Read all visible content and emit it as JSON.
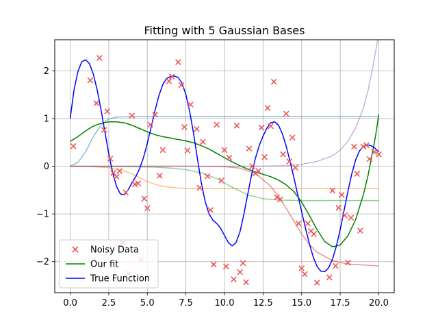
{
  "chart_data": {
    "type": "line",
    "title": "Fitting with 5 Gaussian Bases",
    "xlabel": "",
    "ylabel": "",
    "xlim": [
      -1.0,
      21.0
    ],
    "ylim": [
      -2.65,
      2.65
    ],
    "x_ticks": [
      0,
      2.5,
      5,
      7.5,
      10,
      12.5,
      15,
      17.5,
      20
    ],
    "x_tick_labels": [
      "0.0",
      "2.5",
      "5.0",
      "7.5",
      "10.0",
      "12.5",
      "15.0",
      "17.5",
      "20.0"
    ],
    "y_ticks": [
      -2,
      -1,
      0,
      1,
      2
    ],
    "y_tick_labels": [
      "−2",
      "−1",
      "0",
      "1",
      "2"
    ],
    "grid": true,
    "legend_position": "lower-left",
    "legend": [
      {
        "label": "Noisy Data",
        "marker": "x",
        "color": "#ee5555"
      },
      {
        "label": "Our fit",
        "marker": "line",
        "color": "#008000"
      },
      {
        "label": "True Function",
        "marker": "line",
        "color": "#0000ff"
      }
    ],
    "series": [
      {
        "name": "Noisy Data",
        "kind": "scatter",
        "color": "#ee5555",
        "points": [
          [
            0.2,
            0.42
          ],
          [
            1.3,
            1.8
          ],
          [
            1.7,
            1.32
          ],
          [
            1.9,
            2.27
          ],
          [
            2.2,
            0.76
          ],
          [
            2.4,
            1.15
          ],
          [
            2.6,
            0.16
          ],
          [
            2.8,
            -0.14
          ],
          [
            3.0,
            -0.22
          ],
          [
            3.2,
            -0.1
          ],
          [
            3.4,
            -1.6
          ],
          [
            3.6,
            -0.55
          ],
          [
            3.8,
            -2.25
          ],
          [
            4.0,
            1.06
          ],
          [
            4.2,
            -0.38
          ],
          [
            4.4,
            -0.36
          ],
          [
            4.6,
            -1.96
          ],
          [
            4.8,
            -0.68
          ],
          [
            5.0,
            -0.88
          ],
          [
            5.2,
            0.87
          ],
          [
            5.5,
            1.08
          ],
          [
            5.8,
            -0.2
          ],
          [
            6.0,
            0.34
          ],
          [
            6.4,
            1.78
          ],
          [
            6.6,
            1.88
          ],
          [
            7.0,
            2.18
          ],
          [
            7.2,
            1.7
          ],
          [
            7.4,
            0.82
          ],
          [
            7.6,
            0.33
          ],
          [
            7.8,
            1.29
          ],
          [
            8.2,
            0.78
          ],
          [
            8.4,
            -0.45
          ],
          [
            8.6,
            0.51
          ],
          [
            8.9,
            -0.21
          ],
          [
            9.1,
            -0.92
          ],
          [
            9.3,
            -2.06
          ],
          [
            9.5,
            0.87
          ],
          [
            9.8,
            -0.3
          ],
          [
            10.0,
            0.34
          ],
          [
            10.1,
            -2.1
          ],
          [
            10.3,
            0.18
          ],
          [
            10.6,
            -2.37
          ],
          [
            10.8,
            0.85
          ],
          [
            11.0,
            -2.22
          ],
          [
            11.2,
            -2.03
          ],
          [
            11.4,
            -2.43
          ],
          [
            11.6,
            0.37
          ],
          [
            11.8,
            0.0
          ],
          [
            12.0,
            -0.15
          ],
          [
            12.2,
            -0.1
          ],
          [
            12.4,
            0.81
          ],
          [
            12.6,
            0.19
          ],
          [
            12.8,
            1.22
          ],
          [
            13.0,
            0.84
          ],
          [
            13.2,
            1.77
          ],
          [
            13.4,
            -0.65
          ],
          [
            13.6,
            -0.7
          ],
          [
            13.8,
            0.25
          ],
          [
            14.0,
            1.1
          ],
          [
            14.2,
            0.1
          ],
          [
            14.4,
            0.6
          ],
          [
            14.6,
            -0.03
          ],
          [
            14.8,
            -1.2
          ],
          [
            15.0,
            -2.14
          ],
          [
            15.2,
            -2.26
          ],
          [
            15.4,
            -1.2
          ],
          [
            15.6,
            -1.36
          ],
          [
            15.8,
            -1.42
          ],
          [
            16.0,
            -2.44
          ],
          [
            16.8,
            -2.33
          ],
          [
            17.0,
            -0.51
          ],
          [
            17.2,
            -2.09
          ],
          [
            17.4,
            -0.87
          ],
          [
            17.6,
            -0.6
          ],
          [
            17.8,
            -1.03
          ],
          [
            18.0,
            -2.02
          ],
          [
            18.2,
            -1.08
          ],
          [
            18.4,
            0.41
          ],
          [
            18.6,
            -0.16
          ],
          [
            18.8,
            -1.35
          ],
          [
            19.0,
            0.41
          ],
          [
            19.2,
            0.44
          ],
          [
            19.4,
            0.15
          ],
          [
            19.7,
            0.3
          ],
          [
            20.0,
            0.25
          ]
        ]
      },
      {
        "name": "Our fit",
        "kind": "line",
        "color": "#008000",
        "points": [
          [
            0.0,
            0.52
          ],
          [
            0.5,
            0.62
          ],
          [
            1.0,
            0.74
          ],
          [
            1.5,
            0.84
          ],
          [
            2.0,
            0.9
          ],
          [
            2.5,
            0.93
          ],
          [
            3.0,
            0.93
          ],
          [
            3.5,
            0.91
          ],
          [
            4.0,
            0.86
          ],
          [
            4.5,
            0.79
          ],
          [
            5.0,
            0.72
          ],
          [
            5.5,
            0.66
          ],
          [
            6.0,
            0.62
          ],
          [
            6.5,
            0.59
          ],
          [
            7.0,
            0.56
          ],
          [
            7.5,
            0.53
          ],
          [
            8.0,
            0.49
          ],
          [
            8.5,
            0.43
          ],
          [
            9.0,
            0.36
          ],
          [
            9.5,
            0.27
          ],
          [
            10.0,
            0.18
          ],
          [
            10.5,
            0.09
          ],
          [
            11.0,
            0.01
          ],
          [
            11.5,
            -0.06
          ],
          [
            12.0,
            -0.12
          ],
          [
            12.5,
            -0.17
          ],
          [
            13.0,
            -0.22
          ],
          [
            13.5,
            -0.29
          ],
          [
            14.0,
            -0.39
          ],
          [
            14.5,
            -0.53
          ],
          [
            15.0,
            -0.75
          ],
          [
            15.5,
            -1.03
          ],
          [
            16.0,
            -1.33
          ],
          [
            16.5,
            -1.58
          ],
          [
            17.0,
            -1.69
          ],
          [
            17.5,
            -1.65
          ],
          [
            18.0,
            -1.46
          ],
          [
            18.5,
            -1.12
          ],
          [
            19.0,
            -0.6
          ],
          [
            19.3,
            -0.2
          ],
          [
            19.6,
            0.3
          ],
          [
            19.8,
            0.65
          ],
          [
            20.0,
            1.09
          ]
        ]
      },
      {
        "name": "True Function",
        "kind": "line",
        "color": "#0000ff",
        "points": [
          [
            0.0,
            1.0
          ],
          [
            0.25,
            1.6
          ],
          [
            0.5,
            1.98
          ],
          [
            0.75,
            2.19
          ],
          [
            1.0,
            2.23
          ],
          [
            1.25,
            2.15
          ],
          [
            1.5,
            1.93
          ],
          [
            1.75,
            1.6
          ],
          [
            2.0,
            1.18
          ],
          [
            2.25,
            0.72
          ],
          [
            2.5,
            0.26
          ],
          [
            2.75,
            -0.13
          ],
          [
            3.0,
            -0.42
          ],
          [
            3.25,
            -0.58
          ],
          [
            3.5,
            -0.6
          ],
          [
            3.75,
            -0.5
          ],
          [
            4.0,
            -0.35
          ],
          [
            4.25,
            -0.22
          ],
          [
            4.5,
            -0.05
          ],
          [
            4.75,
            0.18
          ],
          [
            5.0,
            0.48
          ],
          [
            5.25,
            0.82
          ],
          [
            5.5,
            1.17
          ],
          [
            5.75,
            1.48
          ],
          [
            6.0,
            1.71
          ],
          [
            6.25,
            1.84
          ],
          [
            6.5,
            1.88
          ],
          [
            6.75,
            1.89
          ],
          [
            7.0,
            1.86
          ],
          [
            7.25,
            1.74
          ],
          [
            7.5,
            1.5
          ],
          [
            7.75,
            1.14
          ],
          [
            8.0,
            0.68
          ],
          [
            8.25,
            0.15
          ],
          [
            8.5,
            -0.35
          ],
          [
            8.75,
            -0.74
          ],
          [
            9.0,
            -1.0
          ],
          [
            9.25,
            -1.13
          ],
          [
            9.5,
            -1.2
          ],
          [
            9.75,
            -1.3
          ],
          [
            10.0,
            -1.45
          ],
          [
            10.25,
            -1.6
          ],
          [
            10.5,
            -1.67
          ],
          [
            10.75,
            -1.6
          ],
          [
            11.0,
            -1.38
          ],
          [
            11.25,
            -1.02
          ],
          [
            11.5,
            -0.6
          ],
          [
            11.75,
            -0.19
          ],
          [
            12.0,
            0.16
          ],
          [
            12.25,
            0.43
          ],
          [
            12.5,
            0.63
          ],
          [
            12.75,
            0.8
          ],
          [
            13.0,
            0.91
          ],
          [
            13.25,
            0.93
          ],
          [
            13.5,
            0.86
          ],
          [
            13.75,
            0.68
          ],
          [
            14.0,
            0.42
          ],
          [
            14.25,
            0.1
          ],
          [
            14.5,
            -0.24
          ],
          [
            14.75,
            -0.6
          ],
          [
            15.0,
            -0.95
          ],
          [
            15.25,
            -1.3
          ],
          [
            15.5,
            -1.62
          ],
          [
            15.75,
            -1.9
          ],
          [
            16.0,
            -2.1
          ],
          [
            16.25,
            -2.2
          ],
          [
            16.5,
            -2.21
          ],
          [
            16.75,
            -2.13
          ],
          [
            17.0,
            -1.95
          ],
          [
            17.25,
            -1.68
          ],
          [
            17.5,
            -1.33
          ],
          [
            17.75,
            -0.93
          ],
          [
            18.0,
            -0.53
          ],
          [
            18.25,
            -0.16
          ],
          [
            18.5,
            0.13
          ],
          [
            18.75,
            0.32
          ],
          [
            19.0,
            0.42
          ],
          [
            19.25,
            0.45
          ],
          [
            19.5,
            0.43
          ],
          [
            19.75,
            0.38
          ],
          [
            20.0,
            0.3
          ]
        ]
      },
      {
        "name": "",
        "kind": "line",
        "color": "#1f77b4",
        "opacity": 0.5,
        "points": [
          [
            0.0,
            0.0
          ],
          [
            0.5,
            0.08
          ],
          [
            1.0,
            0.3
          ],
          [
            1.5,
            0.62
          ],
          [
            2.0,
            0.87
          ],
          [
            2.5,
            0.99
          ],
          [
            3.0,
            1.03
          ],
          [
            4.0,
            1.04
          ],
          [
            6.0,
            1.04
          ],
          [
            10.0,
            1.04
          ],
          [
            14.0,
            1.04
          ],
          [
            18.0,
            1.04
          ],
          [
            20.0,
            1.04
          ]
        ]
      },
      {
        "name": "",
        "kind": "line",
        "color": "#ff7f0e",
        "opacity": 0.5,
        "points": [
          [
            0.0,
            0.0
          ],
          [
            1.5,
            -0.01
          ],
          [
            2.5,
            -0.03
          ],
          [
            3.5,
            -0.1
          ],
          [
            4.0,
            -0.16
          ],
          [
            4.5,
            -0.24
          ],
          [
            5.0,
            -0.32
          ],
          [
            5.5,
            -0.38
          ],
          [
            6.0,
            -0.42
          ],
          [
            7.0,
            -0.46
          ],
          [
            8.0,
            -0.47
          ],
          [
            12.0,
            -0.47
          ],
          [
            20.0,
            -0.47
          ]
        ]
      },
      {
        "name": "",
        "kind": "line",
        "color": "#2ca02c",
        "opacity": 0.5,
        "points": [
          [
            0.0,
            0.0
          ],
          [
            4.0,
            -0.01
          ],
          [
            5.5,
            -0.02
          ],
          [
            6.5,
            -0.04
          ],
          [
            7.5,
            -0.07
          ],
          [
            8.5,
            -0.14
          ],
          [
            9.5,
            -0.26
          ],
          [
            10.5,
            -0.44
          ],
          [
            11.5,
            -0.6
          ],
          [
            12.5,
            -0.68
          ],
          [
            13.5,
            -0.71
          ],
          [
            15.0,
            -0.72
          ],
          [
            20.0,
            -0.72
          ]
        ]
      },
      {
        "name": "",
        "kind": "line",
        "color": "#d62728",
        "opacity": 0.5,
        "points": [
          [
            0.0,
            0.0
          ],
          [
            8.0,
            0.0
          ],
          [
            10.0,
            -0.01
          ],
          [
            11.0,
            -0.04
          ],
          [
            12.0,
            -0.15
          ],
          [
            13.0,
            -0.42
          ],
          [
            13.5,
            -0.63
          ],
          [
            14.0,
            -0.88
          ],
          [
            14.5,
            -1.15
          ],
          [
            15.0,
            -1.42
          ],
          [
            15.5,
            -1.64
          ],
          [
            16.0,
            -1.8
          ],
          [
            17.0,
            -1.98
          ],
          [
            18.0,
            -2.05
          ],
          [
            20.0,
            -2.09
          ]
        ]
      },
      {
        "name": "",
        "kind": "line",
        "color": "#9467bd",
        "opacity": 0.5,
        "points": [
          [
            0.0,
            0.0
          ],
          [
            12.0,
            0.0
          ],
          [
            14.0,
            0.01
          ],
          [
            15.0,
            0.04
          ],
          [
            16.0,
            0.1
          ],
          [
            17.0,
            0.22
          ],
          [
            17.5,
            0.34
          ],
          [
            18.0,
            0.52
          ],
          [
            18.5,
            0.8
          ],
          [
            19.0,
            1.22
          ],
          [
            19.3,
            1.58
          ],
          [
            19.6,
            2.05
          ],
          [
            19.9,
            2.6
          ],
          [
            20.0,
            2.8
          ]
        ]
      }
    ]
  }
}
